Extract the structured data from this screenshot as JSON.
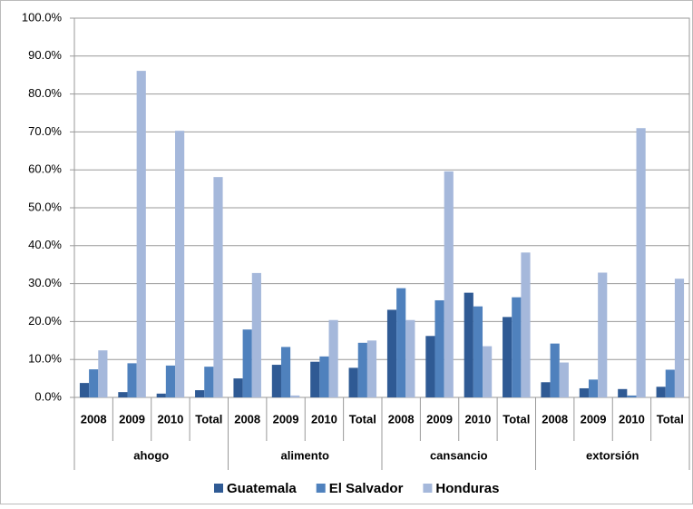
{
  "chart_data": {
    "type": "bar",
    "categories": [
      "2008",
      "2009",
      "2010",
      "Total",
      "2008",
      "2009",
      "2010",
      "Total",
      "2008",
      "2009",
      "2010",
      "Total",
      "2008",
      "2009",
      "2010",
      "Total"
    ],
    "group_labels": [
      "ahogo",
      "alimento",
      "cansancio",
      "extorsión"
    ],
    "series": [
      {
        "name": "Guatemala",
        "color": "#2f5a94",
        "values": [
          3.8,
          1.4,
          1.0,
          1.9,
          5.0,
          8.6,
          9.4,
          7.8,
          23.1,
          16.2,
          27.6,
          21.2,
          4.0,
          2.4,
          2.2,
          2.8
        ]
      },
      {
        "name": "El Salvador",
        "color": "#4f81bd",
        "values": [
          7.4,
          9.0,
          8.4,
          8.1,
          17.9,
          13.3,
          10.8,
          14.4,
          28.8,
          25.6,
          24.0,
          26.4,
          14.2,
          4.7,
          0.5,
          7.3
        ]
      },
      {
        "name": "Honduras",
        "color": "#a5b8db",
        "values": [
          12.4,
          86.1,
          70.3,
          58.1,
          32.8,
          0.5,
          20.4,
          15.0,
          20.4,
          59.6,
          13.5,
          38.2,
          9.2,
          32.9,
          71.0,
          31.3
        ]
      }
    ],
    "ylim": [
      0,
      100
    ],
    "yticks": [
      {
        "value": 0,
        "label": "0.0%"
      },
      {
        "value": 10,
        "label": "10.0%"
      },
      {
        "value": 20,
        "label": "20.0%"
      },
      {
        "value": 30,
        "label": "30.0%"
      },
      {
        "value": 40,
        "label": "40.0%"
      },
      {
        "value": 50,
        "label": "50.0%"
      },
      {
        "value": 60,
        "label": "60.0%"
      },
      {
        "value": 70,
        "label": "70.0%"
      },
      {
        "value": 80,
        "label": "80.0%"
      },
      {
        "value": 90,
        "label": "90.0%"
      },
      {
        "value": 100,
        "label": "100.0%"
      }
    ],
    "grid": true
  }
}
